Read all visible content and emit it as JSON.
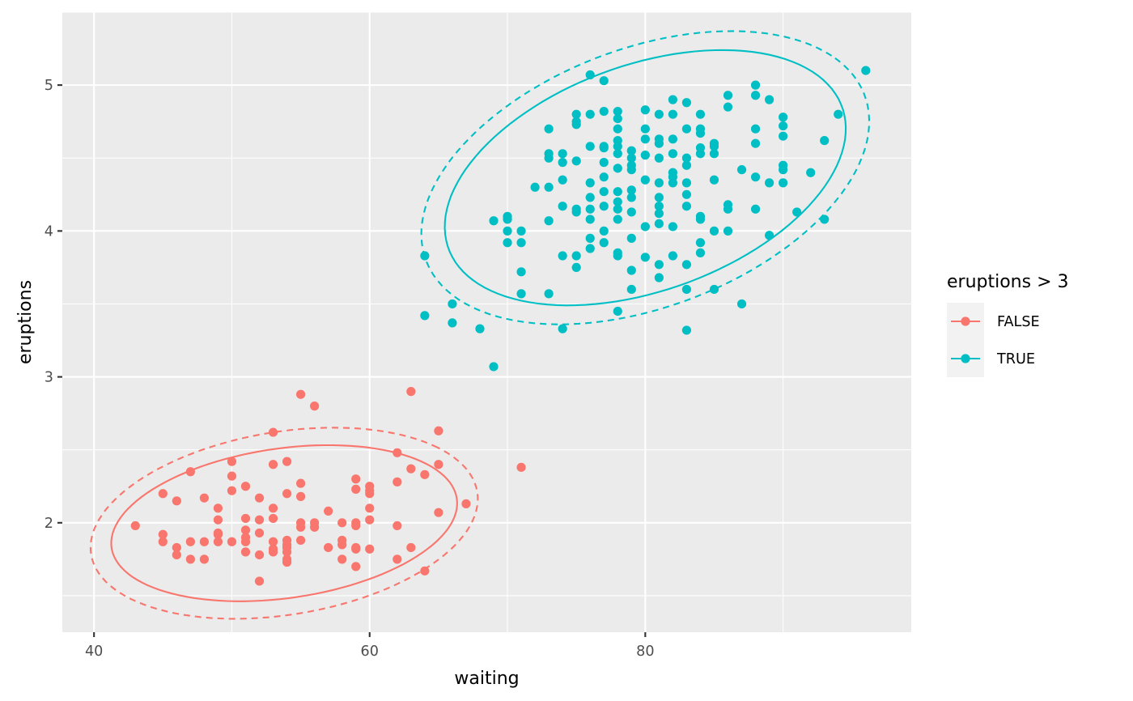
{
  "chart_data": {
    "type": "scatter",
    "title": "",
    "xlabel": "waiting",
    "ylabel": "eruptions",
    "xlim": [
      37.7,
      99.3
    ],
    "ylim": [
      1.25,
      5.5
    ],
    "x_ticks": [
      40,
      60,
      80
    ],
    "y_ticks": [
      2,
      3,
      4,
      5
    ],
    "x_tick_labels": [
      "40",
      "60",
      "80"
    ],
    "y_tick_labels": [
      "2",
      "3",
      "4",
      "5"
    ],
    "grid": true,
    "background": "#EBEBEB",
    "legend": {
      "title": "eruptions > 3",
      "position": "right",
      "entries": [
        "FALSE",
        "TRUE"
      ]
    },
    "series": [
      {
        "name": "FALSE",
        "color": "#F8766D",
        "points": [
          [
            43,
            1.98
          ],
          [
            45,
            1.87
          ],
          [
            45,
            1.92
          ],
          [
            45,
            2.2
          ],
          [
            46,
            1.78
          ],
          [
            46,
            1.83
          ],
          [
            46,
            2.15
          ],
          [
            47,
            1.75
          ],
          [
            47,
            1.87
          ],
          [
            47,
            2.35
          ],
          [
            48,
            1.75
          ],
          [
            48,
            1.87
          ],
          [
            48,
            2.17
          ],
          [
            49,
            1.87
          ],
          [
            49,
            1.92
          ],
          [
            49,
            1.93
          ],
          [
            49,
            2.02
          ],
          [
            49,
            2.1
          ],
          [
            50,
            1.87
          ],
          [
            50,
            2.22
          ],
          [
            50,
            2.32
          ],
          [
            50,
            2.42
          ],
          [
            51,
            1.8
          ],
          [
            51,
            1.87
          ],
          [
            51,
            1.9
          ],
          [
            51,
            1.95
          ],
          [
            51,
            2.03
          ],
          [
            51,
            2.25
          ],
          [
            52,
            1.6
          ],
          [
            52,
            1.78
          ],
          [
            52,
            1.93
          ],
          [
            52,
            2.02
          ],
          [
            52,
            2.17
          ],
          [
            53,
            1.8
          ],
          [
            53,
            1.82
          ],
          [
            53,
            1.87
          ],
          [
            53,
            2.03
          ],
          [
            53,
            2.1
          ],
          [
            53,
            2.4
          ],
          [
            53,
            2.62
          ],
          [
            54,
            1.73
          ],
          [
            54,
            1.75
          ],
          [
            54,
            1.8
          ],
          [
            54,
            1.83
          ],
          [
            54,
            1.85
          ],
          [
            54,
            1.88
          ],
          [
            54,
            2.2
          ],
          [
            54,
            2.42
          ],
          [
            55,
            1.88
          ],
          [
            55,
            1.97
          ],
          [
            55,
            2.0
          ],
          [
            55,
            2.18
          ],
          [
            55,
            2.27
          ],
          [
            55,
            2.88
          ],
          [
            56,
            1.97
          ],
          [
            56,
            2.0
          ],
          [
            56,
            2.8
          ],
          [
            57,
            1.83
          ],
          [
            57,
            2.08
          ],
          [
            58,
            1.75
          ],
          [
            58,
            1.85
          ],
          [
            58,
            1.88
          ],
          [
            58,
            2.0
          ],
          [
            59,
            1.7
          ],
          [
            59,
            1.82
          ],
          [
            59,
            1.83
          ],
          [
            59,
            1.98
          ],
          [
            59,
            2.0
          ],
          [
            59,
            2.23
          ],
          [
            59,
            2.3
          ],
          [
            60,
            1.82
          ],
          [
            60,
            2.02
          ],
          [
            60,
            2.1
          ],
          [
            60,
            2.2
          ],
          [
            60,
            2.22
          ],
          [
            60,
            2.25
          ],
          [
            62,
            1.75
          ],
          [
            62,
            1.98
          ],
          [
            62,
            2.28
          ],
          [
            62,
            2.48
          ],
          [
            63,
            1.83
          ],
          [
            63,
            2.37
          ],
          [
            63,
            2.9
          ],
          [
            64,
            1.67
          ],
          [
            64,
            2.33
          ],
          [
            65,
            2.07
          ],
          [
            65,
            2.4
          ],
          [
            65,
            2.63
          ],
          [
            67,
            2.13
          ],
          [
            71,
            2.38
          ]
        ],
        "ellipses": [
          {
            "level": 0.95,
            "linetype": "solid",
            "center": [
              53.8,
              1.997
            ],
            "x_range": [
              41.5,
              66.6
            ],
            "y_range": [
              1.46,
              2.53
            ]
          },
          {
            "level": 0.99,
            "linetype": "dashed",
            "center": [
              53.8,
              1.997
            ],
            "x_range": [
              40.0,
              68.1
            ],
            "y_range": [
              1.39,
              2.7
            ]
          }
        ]
      },
      {
        "name": "TRUE",
        "color": "#00BFC4",
        "points": [
          [
            64,
            3.42
          ],
          [
            64,
            3.83
          ],
          [
            66,
            3.37
          ],
          [
            66,
            3.5
          ],
          [
            68,
            3.33
          ],
          [
            69,
            3.07
          ],
          [
            69,
            4.07
          ],
          [
            70,
            3.92
          ],
          [
            70,
            4.0
          ],
          [
            70,
            4.08
          ],
          [
            70,
            4.1
          ],
          [
            71,
            3.57
          ],
          [
            71,
            3.72
          ],
          [
            71,
            3.92
          ],
          [
            71,
            4.0
          ],
          [
            72,
            4.3
          ],
          [
            73,
            3.57
          ],
          [
            73,
            4.07
          ],
          [
            73,
            4.3
          ],
          [
            73,
            4.5
          ],
          [
            73,
            4.53
          ],
          [
            73,
            4.7
          ],
          [
            74,
            3.33
          ],
          [
            74,
            3.83
          ],
          [
            74,
            4.17
          ],
          [
            74,
            4.35
          ],
          [
            74,
            4.47
          ],
          [
            74,
            4.53
          ],
          [
            75,
            3.75
          ],
          [
            75,
            3.83
          ],
          [
            75,
            4.13
          ],
          [
            75,
            4.15
          ],
          [
            75,
            4.48
          ],
          [
            75,
            4.73
          ],
          [
            75,
            4.75
          ],
          [
            75,
            4.8
          ],
          [
            76,
            3.88
          ],
          [
            76,
            3.95
          ],
          [
            76,
            4.08
          ],
          [
            76,
            4.15
          ],
          [
            76,
            4.23
          ],
          [
            76,
            4.33
          ],
          [
            76,
            4.58
          ],
          [
            76,
            4.8
          ],
          [
            76,
            5.07
          ],
          [
            77,
            3.92
          ],
          [
            77,
            4.0
          ],
          [
            77,
            4.17
          ],
          [
            77,
            4.27
          ],
          [
            77,
            4.37
          ],
          [
            77,
            4.47
          ],
          [
            77,
            4.57
          ],
          [
            77,
            4.58
          ],
          [
            77,
            4.82
          ],
          [
            77,
            5.03
          ],
          [
            78,
            3.45
          ],
          [
            78,
            3.83
          ],
          [
            78,
            3.85
          ],
          [
            78,
            4.08
          ],
          [
            78,
            4.15
          ],
          [
            78,
            4.2
          ],
          [
            78,
            4.27
          ],
          [
            78,
            4.43
          ],
          [
            78,
            4.53
          ],
          [
            78,
            4.58
          ],
          [
            78,
            4.62
          ],
          [
            78,
            4.7
          ],
          [
            78,
            4.77
          ],
          [
            78,
            4.82
          ],
          [
            79,
            3.6
          ],
          [
            79,
            3.73
          ],
          [
            79,
            3.95
          ],
          [
            79,
            4.13
          ],
          [
            79,
            4.23
          ],
          [
            79,
            4.28
          ],
          [
            79,
            4.42
          ],
          [
            79,
            4.45
          ],
          [
            79,
            4.5
          ],
          [
            79,
            4.55
          ],
          [
            80,
            3.82
          ],
          [
            80,
            4.03
          ],
          [
            80,
            4.35
          ],
          [
            80,
            4.52
          ],
          [
            80,
            4.63
          ],
          [
            80,
            4.7
          ],
          [
            80,
            4.83
          ],
          [
            81,
            3.68
          ],
          [
            81,
            3.77
          ],
          [
            81,
            4.05
          ],
          [
            81,
            4.12
          ],
          [
            81,
            4.17
          ],
          [
            81,
            4.23
          ],
          [
            81,
            4.33
          ],
          [
            81,
            4.5
          ],
          [
            81,
            4.6
          ],
          [
            81,
            4.63
          ],
          [
            81,
            4.8
          ],
          [
            82,
            3.83
          ],
          [
            82,
            4.03
          ],
          [
            82,
            4.33
          ],
          [
            82,
            4.37
          ],
          [
            82,
            4.4
          ],
          [
            82,
            4.53
          ],
          [
            82,
            4.63
          ],
          [
            82,
            4.8
          ],
          [
            82,
            4.9
          ],
          [
            83,
            3.32
          ],
          [
            83,
            3.6
          ],
          [
            83,
            3.77
          ],
          [
            83,
            4.17
          ],
          [
            83,
            4.25
          ],
          [
            83,
            4.33
          ],
          [
            83,
            4.45
          ],
          [
            83,
            4.5
          ],
          [
            83,
            4.7
          ],
          [
            83,
            4.88
          ],
          [
            84,
            3.85
          ],
          [
            84,
            3.92
          ],
          [
            84,
            4.08
          ],
          [
            84,
            4.1
          ],
          [
            84,
            4.53
          ],
          [
            84,
            4.57
          ],
          [
            84,
            4.67
          ],
          [
            84,
            4.7
          ],
          [
            84,
            4.8
          ],
          [
            85,
            3.6
          ],
          [
            85,
            4.0
          ],
          [
            85,
            4.35
          ],
          [
            85,
            4.53
          ],
          [
            85,
            4.58
          ],
          [
            85,
            4.6
          ],
          [
            86,
            4.0
          ],
          [
            86,
            4.15
          ],
          [
            86,
            4.18
          ],
          [
            86,
            4.85
          ],
          [
            86,
            4.93
          ],
          [
            87,
            3.5
          ],
          [
            87,
            4.42
          ],
          [
            88,
            4.15
          ],
          [
            88,
            4.37
          ],
          [
            88,
            4.6
          ],
          [
            88,
            4.7
          ],
          [
            88,
            4.93
          ],
          [
            88,
            5.0
          ],
          [
            89,
            3.97
          ],
          [
            89,
            4.33
          ],
          [
            89,
            4.9
          ],
          [
            90,
            4.33
          ],
          [
            90,
            4.42
          ],
          [
            90,
            4.45
          ],
          [
            90,
            4.65
          ],
          [
            90,
            4.72
          ],
          [
            90,
            4.78
          ],
          [
            91,
            4.13
          ],
          [
            92,
            4.4
          ],
          [
            93,
            4.08
          ],
          [
            93,
            4.62
          ],
          [
            94,
            4.8
          ],
          [
            96,
            5.1
          ]
        ],
        "ellipses": [
          {
            "level": 0.95,
            "linetype": "solid",
            "center": [
              80.0,
              4.365
            ],
            "x_range": [
              65.5,
              94.6
            ],
            "y_range": [
              3.45,
              5.2
            ]
          },
          {
            "level": 0.99,
            "linetype": "dashed",
            "center": [
              80.0,
              4.365
            ],
            "x_range": [
              63.8,
              96.3
            ],
            "y_range": [
              3.29,
              5.3
            ]
          }
        ]
      }
    ]
  }
}
